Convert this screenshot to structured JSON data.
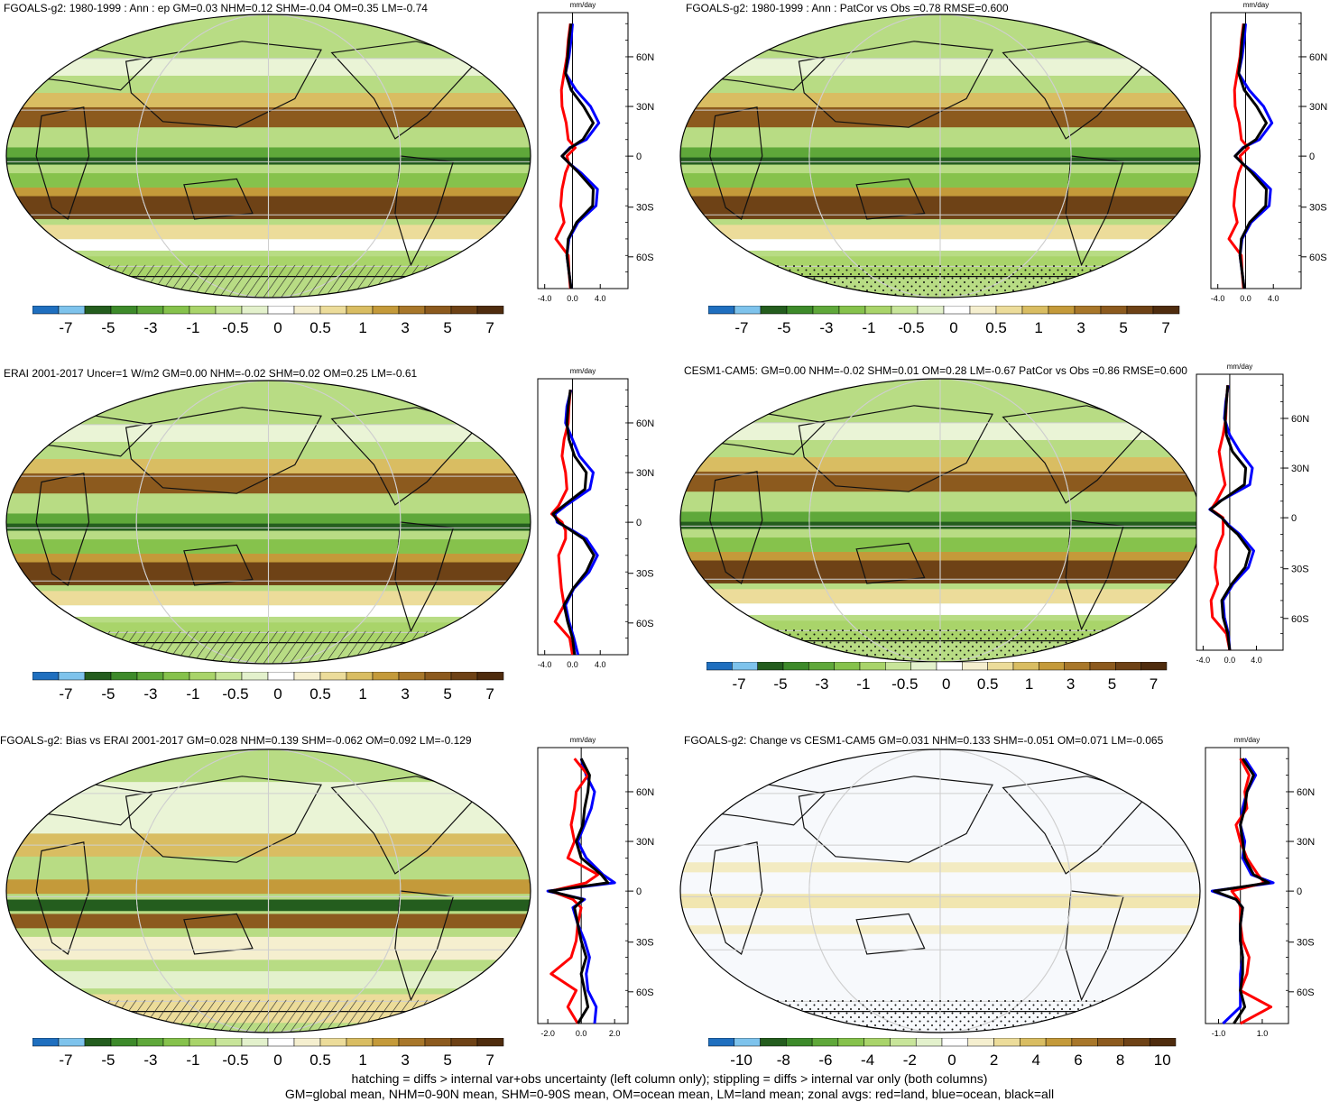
{
  "panels": [
    {
      "title": "FGOALS-g2: 1980-1999 : Ann : ep GM=0.03 NHM=0.12 SHM=-0.04 OM=0.35 LM=-0.74",
      "zonal": {
        "unit": "mm/day",
        "xticks": [
          "-4.0",
          "0.0",
          "4.0"
        ],
        "xrange": [
          -5,
          8
        ],
        "hatching": true
      },
      "colorbar": {
        "labels": [
          "-7",
          "-5",
          "-3",
          "-1",
          "-0.5",
          "0",
          "0.5",
          "1",
          "3",
          "5",
          "7"
        ]
      }
    },
    {
      "title": "FGOALS-g2: 1980-1999 : Ann : PatCor vs Obs =0.78 RMSE=0.600",
      "zonal": {
        "unit": "mm/day",
        "xticks": [
          "-4.0",
          "0.0",
          "4.0"
        ],
        "xrange": [
          -5,
          8
        ],
        "hatching": false
      },
      "colorbar": {
        "labels": [
          "-7",
          "-5",
          "-3",
          "-1",
          "-0.5",
          "0",
          "0.5",
          "1",
          "3",
          "5",
          "7"
        ]
      }
    },
    {
      "title": "ERAI 2001-2017 Uncer=1 W/m2 GM=0.00 NHM=-0.02 SHM=0.02 OM=0.25 LM=-0.61",
      "zonal": {
        "unit": "mm/day",
        "xticks": [
          "-4.0",
          "0.0",
          "4.0"
        ],
        "xrange": [
          -5,
          8
        ],
        "hatching": true
      },
      "colorbar": {
        "labels": [
          "-7",
          "-5",
          "-3",
          "-1",
          "-0.5",
          "0",
          "0.5",
          "1",
          "3",
          "5",
          "7"
        ]
      }
    },
    {
      "title": "CESM1-CAM5: GM=0.00 NHM=-0.02 SHM=0.01 OM=0.28 LM=-0.67 PatCor vs Obs =0.86 RMSE=0.600",
      "zonal": {
        "unit": "mm/day",
        "xticks": [
          "-4.0",
          "0.0",
          "4.0"
        ],
        "xrange": [
          -5,
          8
        ],
        "hatching": false
      },
      "colorbar": {
        "labels": [
          "-7",
          "-5",
          "-3",
          "-1",
          "-0.5",
          "0",
          "0.5",
          "1",
          "3",
          "5",
          "7"
        ]
      }
    },
    {
      "title": "FGOALS-g2: Bias vs ERAI 2001-2017 GM=0.028 NHM=0.139 SHM=-0.062 OM=0.092 LM=-0.129",
      "zonal": {
        "unit": "mm/day",
        "xticks": [
          "-2.0",
          "0.0",
          "2.0"
        ],
        "xrange": [
          -2.6,
          2.8
        ],
        "hatching": true
      },
      "colorbar": {
        "labels": [
          "-7",
          "-5",
          "-3",
          "-1",
          "-0.5",
          "0",
          "0.5",
          "1",
          "3",
          "5",
          "7"
        ]
      }
    },
    {
      "title": "FGOALS-g2: Change vs CESM1-CAM5 GM=0.031 NHM=0.133 SHM=-0.051 OM=0.071 LM=-0.065",
      "zonal": {
        "unit": "mm/day",
        "xticks": [
          "-1.0",
          "1.0"
        ],
        "xrange": [
          -1.6,
          2.2
        ],
        "hatching": false
      },
      "colorbar": {
        "labels": [
          "-10",
          "-8",
          "-6",
          "-4",
          "-2",
          "0",
          "2",
          "4",
          "6",
          "8",
          "10"
        ]
      }
    }
  ],
  "lat_ticks": [
    "60N",
    "30N",
    "0",
    "30S",
    "60S"
  ],
  "colorbar_colors": [
    "#1f6fbf",
    "#7ec3ec",
    "#245d1e",
    "#3d8a2a",
    "#5fa83a",
    "#86c24c",
    "#a9d46a",
    "#c8e59a",
    "#e3f1cc",
    "#ffffff",
    "#f5efcf",
    "#ecdc9a",
    "#d9bd62",
    "#c49a3a",
    "#a8772a",
    "#8c5a1e",
    "#6e4216",
    "#4f2c0e"
  ],
  "colors": {
    "land": "#ff0000",
    "ocean": "#0000ff",
    "all": "#000000",
    "grid": "#cfcfcf"
  },
  "footer": [
    "hatching = diffs > internal var+obs uncertainty (left column only); stippling = diffs > internal var only (both columns)",
    "GM=global mean, NHM=0-90N mean, SHM=0-90S mean, OM=ocean mean, LM=land mean; zonal avgs: red=land, blue=ocean, black=all"
  ],
  "chart_data": [
    {
      "type": "line",
      "panel": "FGOALS-g2: 1980-1999 : Ann : ep",
      "ylabel": "mm/day",
      "x_axis": "latitude",
      "y": [
        80,
        70,
        60,
        50,
        40,
        30,
        20,
        10,
        5,
        0,
        -5,
        -10,
        -20,
        -30,
        -40,
        -50,
        -60,
        -70,
        -80
      ],
      "series": [
        {
          "name": "ocean",
          "values": [
            0.0,
            -0.2,
            -0.5,
            -1.0,
            0.5,
            2.6,
            3.8,
            2.0,
            -0.4,
            -1.5,
            -0.3,
            1.2,
            3.6,
            3.4,
            0.8,
            -0.5,
            -0.8,
            -0.5,
            -0.2
          ]
        },
        {
          "name": "land",
          "values": [
            -0.3,
            -0.6,
            -0.8,
            -1.2,
            -1.6,
            -1.5,
            -0.9,
            -0.6,
            0.4,
            -0.8,
            -0.5,
            -1.0,
            -1.5,
            -1.7,
            -1.2,
            -2.4,
            -0.6,
            -0.5,
            -0.3
          ]
        },
        {
          "name": "all",
          "values": [
            -0.2,
            -0.5,
            -0.7,
            -1.0,
            -0.2,
            1.6,
            3.0,
            1.5,
            -0.3,
            -1.5,
            -0.3,
            0.9,
            3.0,
            2.9,
            0.6,
            -0.6,
            -0.8,
            -0.5,
            -0.2
          ]
        }
      ]
    },
    {
      "type": "line",
      "panel": "FGOALS-g2: 1980-1999 : Ann : PatCor",
      "ylabel": "mm/day",
      "x_axis": "latitude",
      "y": [
        80,
        70,
        60,
        50,
        40,
        30,
        20,
        10,
        5,
        0,
        -5,
        -10,
        -20,
        -30,
        -40,
        -50,
        -60,
        -70,
        -80
      ],
      "series": [
        {
          "name": "ocean",
          "values": [
            0.0,
            -0.2,
            -0.5,
            -1.0,
            0.5,
            2.6,
            3.8,
            2.0,
            -0.4,
            -1.5,
            -0.3,
            1.2,
            3.6,
            3.4,
            0.8,
            -0.5,
            -0.8,
            -0.5,
            -0.2
          ]
        },
        {
          "name": "land",
          "values": [
            -0.3,
            -0.6,
            -0.8,
            -1.2,
            -1.6,
            -1.5,
            -0.9,
            -0.6,
            0.4,
            -0.8,
            -0.5,
            -1.0,
            -1.5,
            -1.7,
            -1.2,
            -2.4,
            -0.6,
            -0.5,
            -0.3
          ]
        },
        {
          "name": "all",
          "values": [
            -0.2,
            -0.5,
            -0.7,
            -1.0,
            -0.2,
            1.6,
            3.0,
            1.5,
            -0.3,
            -1.5,
            -0.3,
            0.9,
            3.0,
            2.9,
            0.6,
            -0.6,
            -0.8,
            -0.5,
            -0.2
          ]
        }
      ]
    },
    {
      "type": "line",
      "panel": "ERAI 2001-2017",
      "ylabel": "mm/day",
      "x_axis": "latitude",
      "y": [
        80,
        70,
        60,
        50,
        40,
        30,
        20,
        10,
        5,
        0,
        -5,
        -10,
        -20,
        -30,
        -40,
        -50,
        -60,
        -70,
        -80
      ],
      "series": [
        {
          "name": "ocean",
          "values": [
            -0.2,
            -0.8,
            -1.0,
            0.0,
            1.0,
            3.0,
            2.5,
            -1.0,
            -2.5,
            -2.2,
            0.0,
            2.0,
            3.6,
            2.4,
            0.2,
            -1.0,
            -0.5,
            0.2,
            0.8
          ]
        },
        {
          "name": "land",
          "values": [
            -0.3,
            -0.5,
            -0.6,
            -1.2,
            -1.5,
            -1.0,
            -0.8,
            -2.0,
            -3.0,
            -1.5,
            -1.0,
            -1.0,
            -2.0,
            -1.8,
            -1.6,
            -1.2,
            -2.5,
            -0.4,
            0.0
          ]
        },
        {
          "name": "all",
          "values": [
            -0.3,
            -0.6,
            -0.8,
            -0.5,
            0.3,
            2.0,
            1.8,
            -1.3,
            -2.8,
            -2.0,
            -0.2,
            1.6,
            3.1,
            2.0,
            0.1,
            -1.2,
            -0.7,
            0.0,
            0.3
          ]
        }
      ]
    },
    {
      "type": "line",
      "panel": "CESM1-CAM5",
      "ylabel": "mm/day",
      "x_axis": "latitude",
      "y": [
        80,
        70,
        60,
        50,
        40,
        30,
        20,
        10,
        5,
        0,
        -5,
        -10,
        -20,
        -30,
        -40,
        -50,
        -60,
        -70,
        -80
      ],
      "series": [
        {
          "name": "ocean",
          "values": [
            -0.2,
            -0.6,
            -0.8,
            0.0,
            1.5,
            3.4,
            3.0,
            -1.5,
            -3.0,
            -1.2,
            0.0,
            1.5,
            3.6,
            2.8,
            0.5,
            -1.0,
            -0.8,
            -0.2,
            0.0
          ]
        },
        {
          "name": "land",
          "values": [
            -0.3,
            -0.5,
            -0.6,
            -1.0,
            -1.6,
            -1.2,
            -0.7,
            -2.0,
            -2.8,
            -1.0,
            -1.0,
            -1.0,
            -2.0,
            -2.2,
            -1.8,
            -2.8,
            -2.6,
            -0.5,
            0.0
          ]
        },
        {
          "name": "all",
          "values": [
            -0.3,
            -0.5,
            -0.7,
            -0.5,
            0.4,
            2.4,
            2.2,
            -1.4,
            -2.9,
            -1.2,
            -0.2,
            1.2,
            3.0,
            2.3,
            0.3,
            -1.2,
            -1.0,
            -0.3,
            0.0
          ]
        }
      ]
    },
    {
      "type": "line",
      "panel": "FGOALS-g2: Bias vs ERAI",
      "ylabel": "mm/day",
      "x_axis": "latitude",
      "y": [
        80,
        70,
        60,
        50,
        40,
        30,
        20,
        10,
        5,
        0,
        -5,
        -10,
        -20,
        -30,
        -40,
        -50,
        -60,
        -70,
        -80
      ],
      "series": [
        {
          "name": "ocean",
          "values": [
            0.0,
            0.3,
            0.8,
            0.6,
            0.2,
            -0.2,
            0.3,
            1.3,
            2.0,
            -2.0,
            0.2,
            -0.5,
            -0.2,
            0.2,
            0.5,
            0.3,
            0.4,
            0.9,
            0.8
          ]
        },
        {
          "name": "land",
          "values": [
            -0.4,
            0.4,
            -0.3,
            -0.4,
            -0.6,
            -0.4,
            -0.8,
            1.0,
            0.3,
            -1.8,
            -0.5,
            0.0,
            -0.2,
            -0.3,
            -0.6,
            -1.8,
            -0.3,
            -0.8,
            -0.2
          ]
        },
        {
          "name": "all",
          "values": [
            0.0,
            0.5,
            0.4,
            0.2,
            0.1,
            -0.3,
            0.0,
            1.2,
            1.6,
            -1.9,
            0.1,
            -0.4,
            -0.2,
            0.0,
            0.3,
            0.0,
            0.2,
            0.4,
            -0.2
          ]
        }
      ]
    },
    {
      "type": "line",
      "panel": "FGOALS-g2: Change vs CESM1-CAM5",
      "ylabel": "mm/day",
      "x_axis": "latitude",
      "y": [
        80,
        70,
        60,
        50,
        40,
        30,
        20,
        10,
        5,
        0,
        -5,
        -10,
        -20,
        -30,
        -40,
        -50,
        -60,
        -70,
        -80
      ],
      "series": [
        {
          "name": "ocean",
          "values": [
            0.2,
            0.7,
            0.3,
            0.1,
            0.0,
            0.2,
            0.1,
            0.5,
            1.5,
            -1.3,
            -0.2,
            0.1,
            0.0,
            0.0,
            0.1,
            0.0,
            0.0,
            0.0,
            -0.8
          ]
        },
        {
          "name": "land",
          "values": [
            0.0,
            0.4,
            0.2,
            0.3,
            -0.2,
            0.0,
            0.3,
            0.8,
            1.1,
            -0.4,
            -0.1,
            0.0,
            0.0,
            0.1,
            0.4,
            0.3,
            0.0,
            1.4,
            0.0
          ]
        },
        {
          "name": "all",
          "values": [
            0.1,
            0.6,
            0.3,
            0.2,
            0.0,
            0.1,
            0.2,
            0.6,
            1.3,
            -1.2,
            -0.2,
            0.1,
            0.0,
            0.0,
            0.1,
            0.1,
            0.0,
            0.2,
            -0.3
          ]
        }
      ]
    }
  ]
}
